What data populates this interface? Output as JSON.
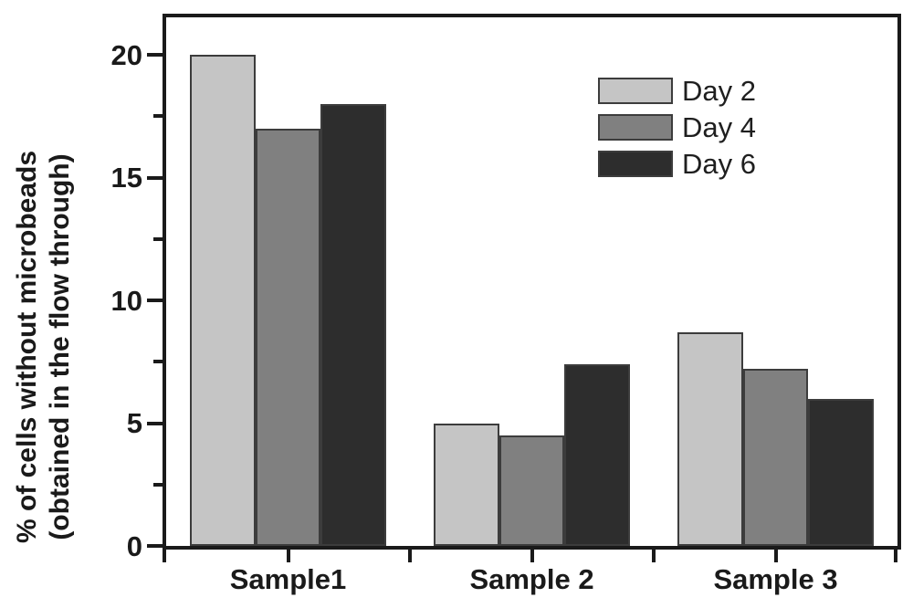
{
  "chart_data": {
    "type": "bar",
    "title": "",
    "categories": [
      "Sample1",
      "Sample 2",
      "Sample 3"
    ],
    "series": [
      {
        "name": "Day 2",
        "color": "#c5c5c5",
        "values": [
          20.0,
          5.0,
          8.7
        ]
      },
      {
        "name": "Day 4",
        "color": "#808080",
        "values": [
          17.0,
          4.5,
          7.2
        ]
      },
      {
        "name": "Day 6",
        "color": "#2d2d2d",
        "values": [
          18.0,
          7.4,
          6.0
        ]
      }
    ],
    "xlabel": "",
    "ylabel_line1": "% of cells without microbeads",
    "ylabel_line2": "(obtained in the flow through)",
    "ylim": [
      0,
      21.5
    ],
    "yticks": [
      0,
      5,
      10,
      15,
      20
    ],
    "yticks_minor": [
      2.5,
      7.5,
      12.5,
      17.5
    ],
    "grid": false,
    "legend_position": "top-right",
    "colors": {
      "axis": "#1a1a1a",
      "bar_edge": "#3c3c3c",
      "background": "#ffffff"
    }
  }
}
